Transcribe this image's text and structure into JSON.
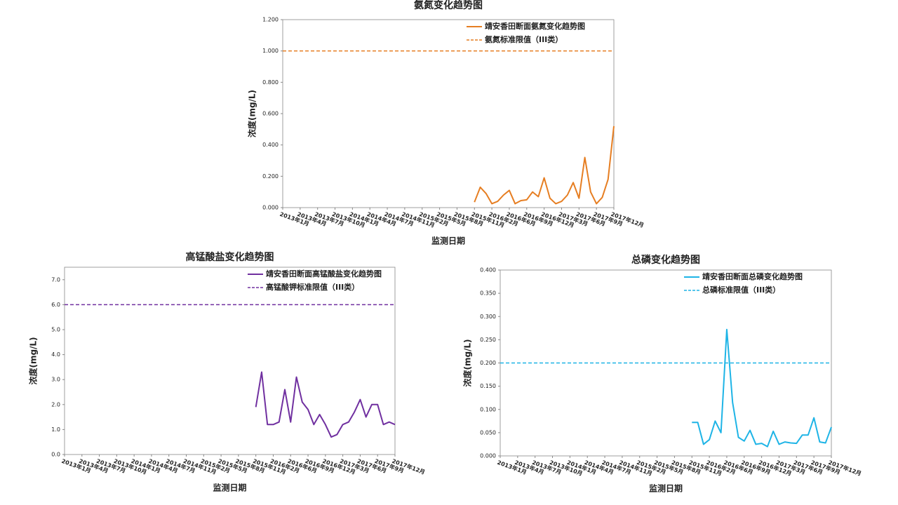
{
  "chart_data": [
    {
      "type": "line",
      "title": "氨氮变化趋势图",
      "xlabel": "监测日期",
      "ylabel": "浓度(mg/L)",
      "legend": "upper right",
      "categories": [
        "2013年1月",
        null,
        null,
        "2013年4月",
        null,
        null,
        "2013年7月",
        null,
        null,
        "2013年10月",
        null,
        null,
        "2014年1月",
        null,
        null,
        "2014年4月",
        null,
        null,
        "2014年7月",
        null,
        null,
        "2014年11月",
        null,
        null,
        "2015年2月",
        null,
        null,
        "2015年5月",
        null,
        null,
        "2015年8月",
        null,
        null,
        "2015年11月",
        null,
        null,
        "2016年2月",
        null,
        null,
        "2016年6月",
        null,
        null,
        "2016年9月",
        null,
        null,
        "2016年12月",
        null,
        null,
        "2017年3月",
        null,
        null,
        "2017年6月",
        null,
        null,
        "2017年9月",
        null,
        null,
        "2017年12月"
      ],
      "series": [
        {
          "name": "靖安香田断面氨氮变化趋势图",
          "color": "#e67e22",
          "values": [
            null,
            null,
            null,
            null,
            null,
            null,
            null,
            null,
            null,
            null,
            null,
            null,
            null,
            null,
            null,
            null,
            null,
            null,
            null,
            null,
            null,
            null,
            null,
            null,
            null,
            null,
            null,
            null,
            null,
            null,
            null,
            null,
            null,
            0.035,
            0.13,
            0.09,
            0.025,
            0.04,
            0.08,
            0.11,
            0.025,
            0.045,
            0.05,
            0.1,
            0.07,
            0.19,
            0.06,
            0.025,
            0.04,
            0.08,
            0.16,
            0.06,
            0.32,
            0.1,
            0.025,
            0.065,
            0.18,
            0.52
          ]
        },
        {
          "name": "氨氮标准限值（III类）",
          "color": "#e67e22",
          "value": 1.0,
          "style": "dashed"
        }
      ],
      "ylim": [
        0,
        1.2
      ],
      "yticks": [
        {
          "value": 0,
          "label": "0.000"
        },
        {
          "value": 0.2,
          "label": "0.200"
        },
        {
          "value": 0.4,
          "label": "0.400"
        },
        {
          "value": 0.6,
          "label": "0.600"
        },
        {
          "value": 0.8,
          "label": "0.800"
        },
        {
          "value": 1.0,
          "label": "1.000"
        },
        {
          "value": 1.2,
          "label": "1.200"
        }
      ]
    },
    {
      "type": "line",
      "title": "高锰酸盐变化趋势图",
      "xlabel": "监测日期",
      "ylabel": "浓度(mg/L)",
      "legend": "upper right",
      "categories": [
        "2013年1月",
        null,
        null,
        "2013年4月",
        null,
        null,
        "2013年7月",
        null,
        null,
        "2013年10月",
        null,
        null,
        "2014年1月",
        null,
        null,
        "2014年4月",
        null,
        null,
        "2014年7月",
        null,
        null,
        "2014年11月",
        null,
        null,
        "2015年2月",
        null,
        null,
        "2015年5月",
        null,
        null,
        "2015年8月",
        null,
        null,
        "2015年11月",
        null,
        null,
        "2016年2月",
        null,
        null,
        "2016年6月",
        null,
        null,
        "2016年9月",
        null,
        null,
        "2016年12月",
        null,
        null,
        "2017年3月",
        null,
        null,
        "2017年6月",
        null,
        null,
        "2017年9月",
        null,
        null,
        "2017年12月"
      ],
      "series": [
        {
          "name": "靖安香田断面高锰酸盐变化趋势图",
          "color": "#7030a0",
          "values": [
            null,
            null,
            null,
            null,
            null,
            null,
            null,
            null,
            null,
            null,
            null,
            null,
            null,
            null,
            null,
            null,
            null,
            null,
            null,
            null,
            null,
            null,
            null,
            null,
            null,
            null,
            null,
            null,
            null,
            null,
            null,
            null,
            null,
            1.9,
            3.3,
            1.2,
            1.2,
            1.3,
            2.6,
            1.3,
            3.1,
            2.1,
            1.8,
            1.2,
            1.6,
            1.2,
            0.7,
            0.8,
            1.2,
            1.3,
            1.7,
            2.2,
            1.5,
            2.0,
            2.0,
            1.2,
            1.3,
            1.2
          ]
        },
        {
          "name": "高锰酸钾标准限值（III类）",
          "color": "#7030a0",
          "value": 6.0,
          "style": "dashed"
        }
      ],
      "ylim": [
        0,
        7.5
      ],
      "yticks": [
        {
          "value": 0,
          "label": "0.0"
        },
        {
          "value": 1,
          "label": "1.0"
        },
        {
          "value": 2,
          "label": "2.0"
        },
        {
          "value": 3,
          "label": "3.0"
        },
        {
          "value": 4,
          "label": "4.0"
        },
        {
          "value": 5,
          "label": "5.0"
        },
        {
          "value": 6,
          "label": "6.0"
        },
        {
          "value": 7,
          "label": "7.0"
        }
      ]
    },
    {
      "type": "line",
      "title": "总磷变化趋势图",
      "xlabel": "监测日期",
      "ylabel": "浓度(mg/L)",
      "legend": "upper right",
      "categories": [
        "2013年1月",
        null,
        null,
        "2013年4月",
        null,
        null,
        "2013年7月",
        null,
        null,
        "2013年10月",
        null,
        null,
        "2014年1月",
        null,
        null,
        "2014年4月",
        null,
        null,
        "2014年7月",
        null,
        null,
        "2014年11月",
        null,
        null,
        "2015年2月",
        null,
        null,
        "2015年5月",
        null,
        null,
        "2015年8月",
        null,
        null,
        "2015年11月",
        null,
        null,
        "2016年2月",
        null,
        null,
        "2016年6月",
        null,
        null,
        "2016年9月",
        null,
        null,
        "2016年12月",
        null,
        null,
        "2017年3月",
        null,
        null,
        "2017年6月",
        null,
        null,
        "2017年9月",
        null,
        null,
        "2017年12月"
      ],
      "series": [
        {
          "name": "靖安香田断面总磷变化趋势图",
          "color": "#1eb4e6",
          "values": [
            null,
            null,
            null,
            null,
            null,
            null,
            null,
            null,
            null,
            null,
            null,
            null,
            null,
            null,
            null,
            null,
            null,
            null,
            null,
            null,
            null,
            null,
            null,
            null,
            null,
            null,
            null,
            null,
            null,
            null,
            null,
            null,
            null,
            0.072,
            0.072,
            0.025,
            0.035,
            0.075,
            0.05,
            0.272,
            0.115,
            0.04,
            0.032,
            0.055,
            0.025,
            0.027,
            0.02,
            0.053,
            0.025,
            0.03,
            0.028,
            0.027,
            0.045,
            0.045,
            0.082,
            0.03,
            0.028,
            0.062
          ]
        },
        {
          "name": "总磷标准限值（III类）",
          "color": "#1eb4e6",
          "value": 0.2,
          "style": "dashed"
        }
      ],
      "ylim": [
        0,
        0.4
      ],
      "yticks": [
        {
          "value": 0,
          "label": "0.000"
        },
        {
          "value": 0.05,
          "label": "0.050"
        },
        {
          "value": 0.1,
          "label": "0.100"
        },
        {
          "value": 0.15,
          "label": "0.150"
        },
        {
          "value": 0.2,
          "label": "0.200"
        },
        {
          "value": 0.25,
          "label": "0.250"
        },
        {
          "value": 0.3,
          "label": "0.300"
        },
        {
          "value": 0.35,
          "label": "0.350"
        },
        {
          "value": 0.4,
          "label": "0.400"
        }
      ]
    }
  ]
}
